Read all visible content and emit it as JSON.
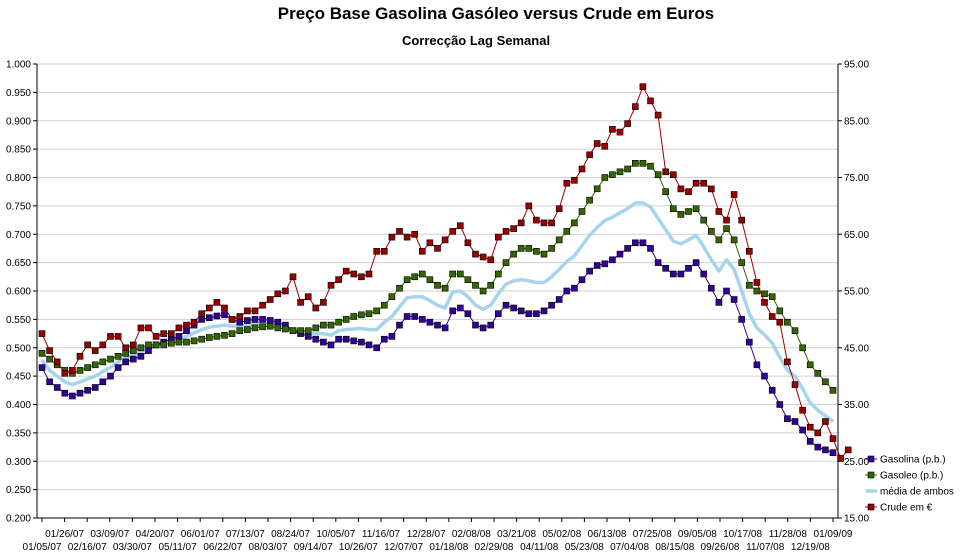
{
  "chart_data": {
    "type": "line",
    "title": "Preço Base Gasolina Gasóleo versus Crude em Euros",
    "subtitle": "Correcção Lag Semanal",
    "xlabel": "",
    "ylabel": "",
    "y2label": "",
    "ylim": [
      0.2,
      1.0
    ],
    "y2lim": [
      15,
      95
    ],
    "grid": true,
    "legend_position": "right",
    "x_tick_labels_upper": [
      "01/26/07",
      "03/09/07",
      "04/20/07",
      "06/01/07",
      "07/13/07",
      "08/24/07",
      "10/05/07",
      "11/16/07",
      "12/28/07",
      "02/08/08",
      "03/21/08",
      "05/02/08",
      "06/13/08",
      "07/25/08",
      "09/05/08",
      "10/17/08",
      "11/28/08",
      "01/09/09"
    ],
    "x_tick_labels_lower": [
      "01/05/07",
      "02/16/07",
      "03/30/07",
      "05/11/07",
      "06/22/07",
      "08/03/07",
      "09/14/07",
      "10/26/07",
      "12/07/07",
      "01/18/08",
      "02/29/08",
      "04/11/08",
      "05/23/08",
      "07/04/08",
      "08/15/08",
      "09/26/08",
      "11/07/08",
      "12/19/08"
    ],
    "y_ticks": [
      "0.200",
      "0.250",
      "0.300",
      "0.350",
      "0.400",
      "0.450",
      "0.500",
      "0.550",
      "0.600",
      "0.650",
      "0.700",
      "0.750",
      "0.800",
      "0.850",
      "0.900",
      "0.950",
      "1.000"
    ],
    "y2_ticks": [
      "15.00",
      "25.00",
      "35.00",
      "45.00",
      "55.00",
      "65.00",
      "75.00",
      "85.00",
      "95.00"
    ],
    "series": [
      {
        "name": "Gasolina (p.b.)",
        "axis": "left",
        "color": "#330099",
        "marker": "square",
        "values": [
          0.465,
          0.44,
          0.43,
          0.42,
          0.415,
          0.42,
          0.425,
          0.43,
          0.44,
          0.45,
          0.465,
          0.475,
          0.48,
          0.485,
          0.495,
          0.505,
          0.51,
          0.515,
          0.52,
          0.53,
          0.54,
          0.55,
          0.553,
          0.556,
          0.558,
          0.55,
          0.545,
          0.548,
          0.55,
          0.55,
          0.548,
          0.545,
          0.54,
          0.53,
          0.525,
          0.52,
          0.515,
          0.51,
          0.505,
          0.515,
          0.515,
          0.512,
          0.51,
          0.505,
          0.5,
          0.515,
          0.52,
          0.54,
          0.555,
          0.555,
          0.55,
          0.545,
          0.54,
          0.535,
          0.565,
          0.57,
          0.56,
          0.54,
          0.535,
          0.54,
          0.56,
          0.575,
          0.57,
          0.565,
          0.56,
          0.56,
          0.565,
          0.575,
          0.585,
          0.6,
          0.605,
          0.62,
          0.635,
          0.645,
          0.648,
          0.655,
          0.665,
          0.675,
          0.685,
          0.685,
          0.675,
          0.65,
          0.64,
          0.63,
          0.63,
          0.64,
          0.65,
          0.63,
          0.605,
          0.58,
          0.6,
          0.585,
          0.55,
          0.51,
          0.47,
          0.45,
          0.425,
          0.4,
          0.375,
          0.37,
          0.355,
          0.335,
          0.325,
          0.32,
          0.315
        ]
      },
      {
        "name": "Gasoleo (p.b.)",
        "axis": "left",
        "color": "#336600",
        "marker": "square",
        "values": [
          0.49,
          0.48,
          0.47,
          0.46,
          0.455,
          0.46,
          0.465,
          0.47,
          0.475,
          0.48,
          0.485,
          0.49,
          0.495,
          0.5,
          0.505,
          0.505,
          0.505,
          0.508,
          0.51,
          0.51,
          0.512,
          0.515,
          0.518,
          0.52,
          0.522,
          0.525,
          0.53,
          0.532,
          0.535,
          0.537,
          0.538,
          0.535,
          0.533,
          0.53,
          0.53,
          0.53,
          0.535,
          0.54,
          0.54,
          0.545,
          0.55,
          0.555,
          0.558,
          0.56,
          0.565,
          0.575,
          0.59,
          0.605,
          0.62,
          0.625,
          0.63,
          0.62,
          0.61,
          0.605,
          0.63,
          0.63,
          0.62,
          0.61,
          0.6,
          0.61,
          0.63,
          0.65,
          0.665,
          0.675,
          0.675,
          0.67,
          0.665,
          0.675,
          0.69,
          0.705,
          0.72,
          0.74,
          0.76,
          0.78,
          0.8,
          0.805,
          0.81,
          0.815,
          0.825,
          0.825,
          0.82,
          0.805,
          0.775,
          0.745,
          0.735,
          0.74,
          0.745,
          0.725,
          0.705,
          0.69,
          0.71,
          0.69,
          0.65,
          0.61,
          0.6,
          0.595,
          0.59,
          0.565,
          0.545,
          0.53,
          0.5,
          0.47,
          0.455,
          0.44,
          0.425
        ]
      },
      {
        "name": "média de ambos",
        "axis": "left",
        "color": "#a6d4ec",
        "marker": "none",
        "values": [
          0.478,
          0.46,
          0.45,
          0.44,
          0.435,
          0.44,
          0.445,
          0.45,
          0.458,
          0.465,
          0.475,
          0.482,
          0.488,
          0.493,
          0.5,
          0.505,
          0.508,
          0.512,
          0.515,
          0.52,
          0.526,
          0.532,
          0.536,
          0.538,
          0.54,
          0.538,
          0.538,
          0.54,
          0.542,
          0.543,
          0.543,
          0.54,
          0.537,
          0.53,
          0.528,
          0.525,
          0.525,
          0.525,
          0.522,
          0.53,
          0.532,
          0.533,
          0.534,
          0.532,
          0.532,
          0.545,
          0.555,
          0.572,
          0.588,
          0.59,
          0.59,
          0.583,
          0.575,
          0.57,
          0.598,
          0.6,
          0.59,
          0.575,
          0.568,
          0.575,
          0.595,
          0.612,
          0.618,
          0.62,
          0.618,
          0.615,
          0.615,
          0.625,
          0.638,
          0.652,
          0.662,
          0.68,
          0.698,
          0.712,
          0.724,
          0.73,
          0.738,
          0.745,
          0.755,
          0.755,
          0.748,
          0.728,
          0.708,
          0.688,
          0.683,
          0.69,
          0.698,
          0.678,
          0.655,
          0.635,
          0.655,
          0.638,
          0.6,
          0.56,
          0.535,
          0.523,
          0.508,
          0.483,
          0.46,
          0.45,
          0.428,
          0.403,
          0.39,
          0.38,
          0.37
        ]
      },
      {
        "name": "Crude em €",
        "axis": "right",
        "color": "#990000",
        "marker": "square",
        "values": [
          47.5,
          44.5,
          42.5,
          40.5,
          41.0,
          43.5,
          45.5,
          44.5,
          45.5,
          47.0,
          47.0,
          45.0,
          45.5,
          48.5,
          48.5,
          47.0,
          47.5,
          47.5,
          48.5,
          49.0,
          49.5,
          51.0,
          52.0,
          53.0,
          52.0,
          50.0,
          50.5,
          51.5,
          51.5,
          52.5,
          53.5,
          54.5,
          55.0,
          57.5,
          53.0,
          54.0,
          52.0,
          53.0,
          56.0,
          57.0,
          58.5,
          58.0,
          57.5,
          58.0,
          62.0,
          62.0,
          64.5,
          65.5,
          64.5,
          65.0,
          62.0,
          63.5,
          62.5,
          64.0,
          65.5,
          66.5,
          63.5,
          61.5,
          61.0,
          60.5,
          64.5,
          65.5,
          66.0,
          67.0,
          70.0,
          67.5,
          67.0,
          67.0,
          69.5,
          74.0,
          74.5,
          76.5,
          79.0,
          81.0,
          80.5,
          83.5,
          83.0,
          84.5,
          87.5,
          91.0,
          88.5,
          86.0,
          76.0,
          75.5,
          73.0,
          72.5,
          74.0,
          74.0,
          73.0,
          69.0,
          67.5,
          72.0,
          67.5,
          62.0,
          56.5,
          53.0,
          50.5,
          49.5,
          42.5,
          38.5,
          34.0,
          31.0,
          30.0,
          32.0,
          29.0,
          25.5,
          27.0
        ]
      }
    ],
    "value_label": ""
  }
}
